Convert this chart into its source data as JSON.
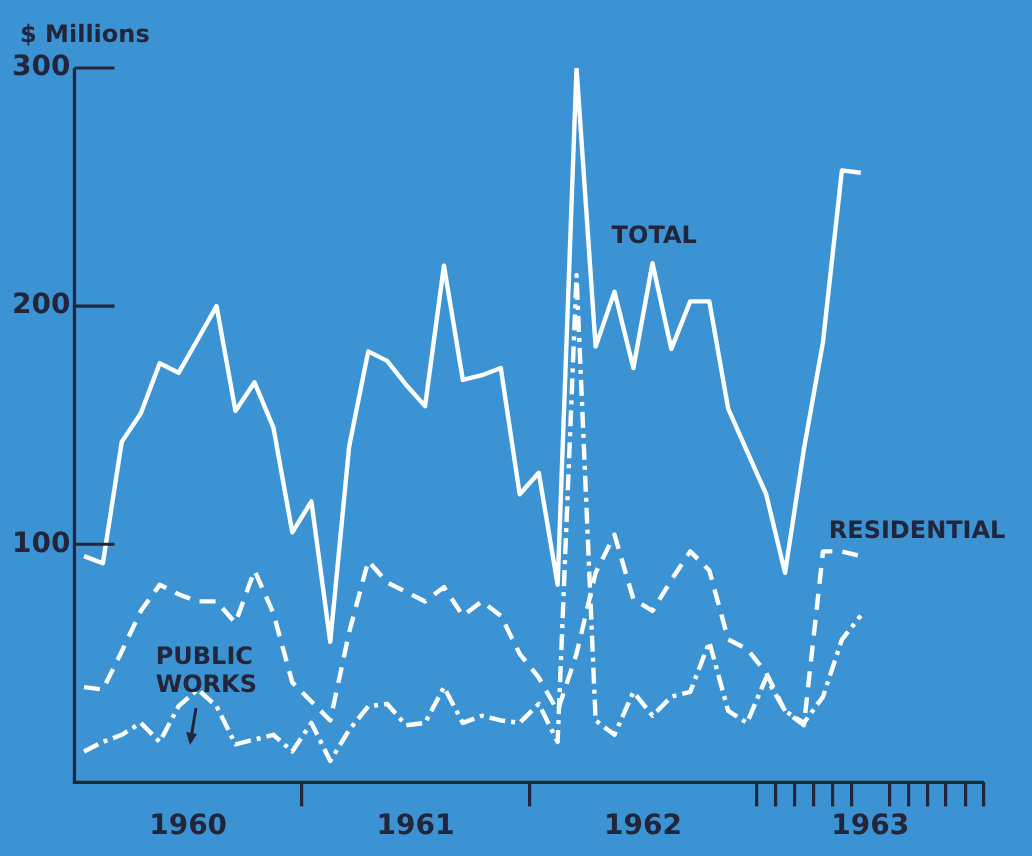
{
  "chart_data": {
    "type": "line",
    "ylabel": "$ Millions",
    "x": [
      1960.042,
      1960.125,
      1960.208,
      1960.292,
      1960.375,
      1960.458,
      1960.542,
      1960.625,
      1960.708,
      1960.792,
      1960.875,
      1960.958,
      1961.042,
      1961.125,
      1961.208,
      1961.292,
      1961.375,
      1961.458,
      1961.542,
      1961.625,
      1961.708,
      1961.792,
      1961.875,
      1961.958,
      1962.042,
      1962.125,
      1962.208,
      1962.292,
      1962.375,
      1962.458,
      1962.542,
      1962.625,
      1962.708,
      1962.792,
      1962.875,
      1962.958,
      1963.042,
      1963.125,
      1963.208,
      1963.292,
      1963.375,
      1963.458
    ],
    "series": [
      {
        "name": "TOTAL",
        "color": "#ffffff",
        "line_style": "solid",
        "values": [
          95,
          92,
          143,
          155,
          176,
          172,
          186,
          200,
          156,
          168,
          149,
          105,
          118,
          59,
          141,
          181,
          177,
          167,
          158,
          217,
          169,
          171,
          174,
          121,
          130,
          83,
          300,
          183,
          206,
          174,
          218,
          182,
          202,
          202,
          157,
          139,
          121,
          88,
          140,
          185,
          257,
          256
        ]
      },
      {
        "name": "RESIDENTIAL",
        "color": "#ffffff",
        "line_style": "dashed",
        "values": [
          40,
          39,
          55,
          72,
          83,
          79,
          76,
          76,
          67,
          89,
          71,
          42,
          34,
          26,
          63,
          93,
          84,
          80,
          76,
          82,
          70,
          76,
          70,
          54,
          44,
          30,
          54,
          88,
          104,
          77,
          72,
          85,
          97,
          89,
          60,
          56,
          46,
          30,
          24,
          97,
          97,
          95
        ]
      },
      {
        "name": "PUBLIC WORKS",
        "color": "#ffffff",
        "line_style": "dotted",
        "values": [
          13,
          17,
          20,
          25,
          17,
          32,
          39,
          32,
          16,
          18,
          20,
          13,
          25,
          9,
          22,
          32,
          33,
          24,
          25,
          40,
          25,
          28,
          26,
          25,
          33,
          17,
          213,
          26,
          20,
          38,
          28,
          36,
          38,
          59,
          30,
          25,
          44,
          30,
          25,
          36,
          60,
          70
        ]
      }
    ],
    "xlim": [
      1960,
      1964
    ],
    "xticks": [
      {
        "value": 1960.5,
        "label": "1960"
      },
      {
        "value": 1961,
        "label": null
      },
      {
        "value": 1961.5,
        "label": "1961"
      },
      {
        "value": 1962,
        "label": null
      },
      {
        "value": 1962.5,
        "label": "1962"
      },
      {
        "value": 1963,
        "label": null
      },
      {
        "value": 1963.083,
        "label": null
      },
      {
        "value": 1963.167,
        "label": null
      },
      {
        "value": 1963.25,
        "label": null
      },
      {
        "value": 1963.333,
        "label": null
      },
      {
        "value": 1963.417,
        "label": null
      },
      {
        "value": 1963.5,
        "label": "1963"
      },
      {
        "value": 1963.583,
        "label": null
      },
      {
        "value": 1963.667,
        "label": null
      },
      {
        "value": 1963.75,
        "label": null
      },
      {
        "value": 1963.833,
        "label": null
      },
      {
        "value": 1963.917,
        "label": null
      },
      {
        "value": 1964,
        "label": null
      }
    ],
    "ylim": [
      0,
      300
    ],
    "yticks": [
      100,
      200,
      300
    ],
    "grid": false,
    "legend": false,
    "marker": "none"
  }
}
